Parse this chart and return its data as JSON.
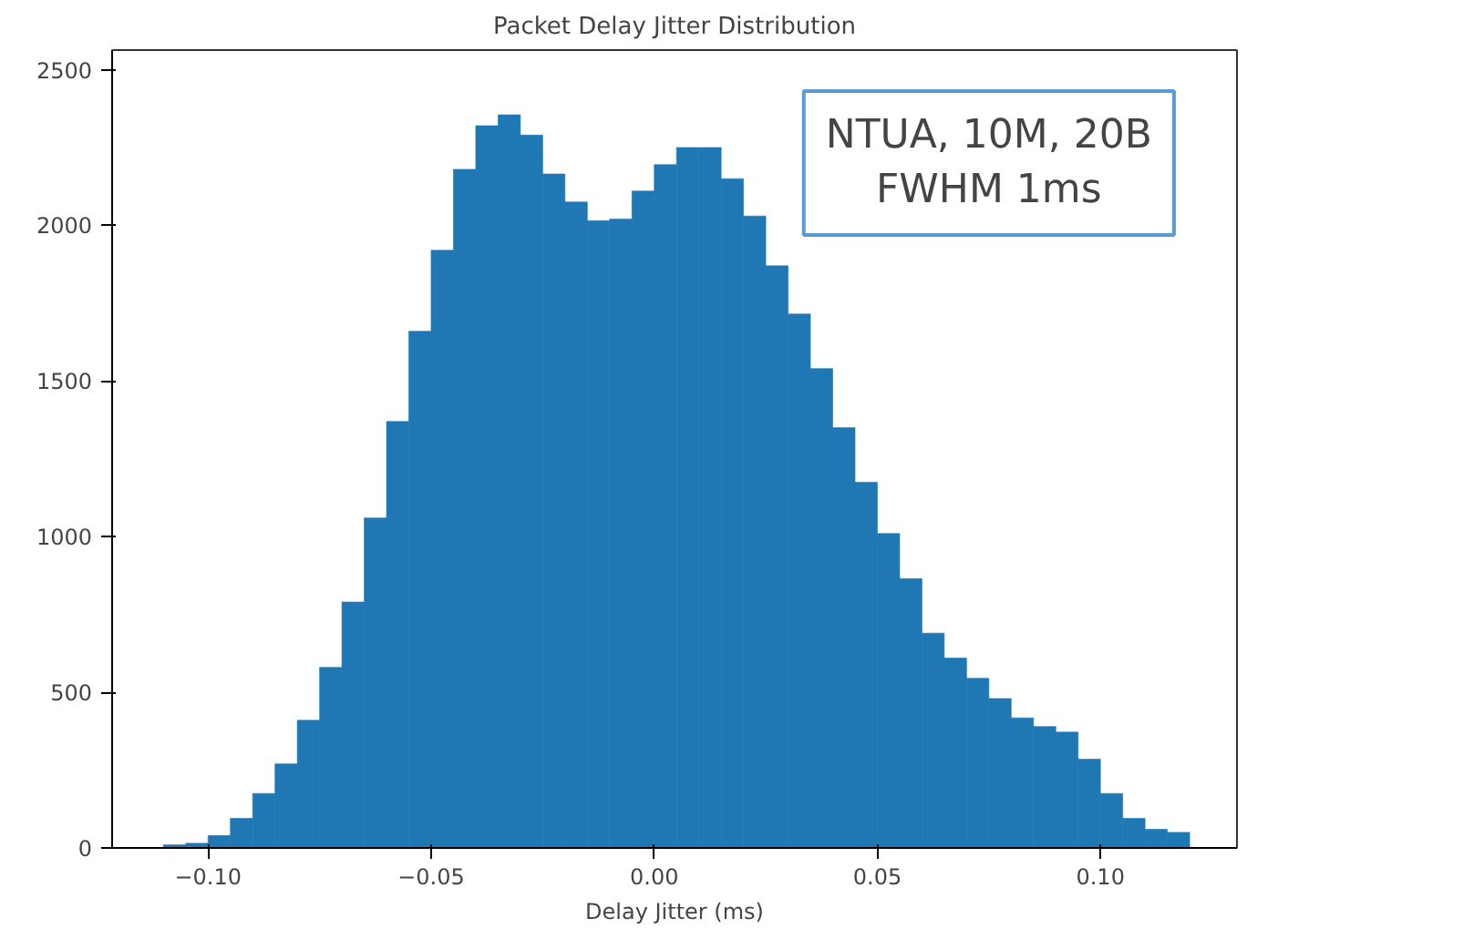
{
  "chart_data": {
    "type": "histogram",
    "title": "Packet Delay Jitter Distribution",
    "xlabel": "Delay Jitter (ms)",
    "bins": [
      -0.11,
      -0.105,
      -0.1,
      -0.095,
      -0.09,
      -0.085,
      -0.08,
      -0.075,
      -0.07,
      -0.065,
      -0.06,
      -0.055,
      -0.05,
      -0.045,
      -0.04,
      -0.035,
      -0.03,
      -0.025,
      -0.02,
      -0.015,
      -0.01,
      -0.005,
      0.0,
      0.005,
      0.01,
      0.015,
      0.02,
      0.025,
      0.03,
      0.035,
      0.04,
      0.045,
      0.05,
      0.055,
      0.06,
      0.065,
      0.07,
      0.075,
      0.08,
      0.085,
      0.09,
      0.095,
      0.1,
      0.105,
      0.11,
      0.115,
      0.12
    ],
    "values": [
      10,
      15,
      40,
      95,
      175,
      270,
      410,
      580,
      790,
      1060,
      1370,
      1660,
      1920,
      2180,
      2320,
      2355,
      2290,
      2165,
      2075,
      2015,
      2020,
      2110,
      2195,
      2250,
      2250,
      2150,
      2030,
      1870,
      1715,
      1540,
      1350,
      1175,
      1010,
      865,
      690,
      610,
      545,
      480,
      418,
      390,
      372,
      285,
      175,
      95,
      60,
      50
    ],
    "color": "#1f77b4",
    "xlim": [
      -0.1215,
      0.1306
    ],
    "ylim": [
      0,
      2563
    ],
    "xticks": [
      {
        "value": -0.1,
        "label": "−0.10"
      },
      {
        "value": -0.05,
        "label": "−0.05"
      },
      {
        "value": 0.0,
        "label": "0.00"
      },
      {
        "value": 0.05,
        "label": "0.05"
      },
      {
        "value": 0.1,
        "label": "0.10"
      }
    ],
    "yticks": [
      0,
      500,
      1000,
      1500,
      2000,
      2500
    ],
    "grid": false,
    "annotations": [
      "NTUA, 10M, 20B",
      "FWHM 1ms"
    ]
  }
}
